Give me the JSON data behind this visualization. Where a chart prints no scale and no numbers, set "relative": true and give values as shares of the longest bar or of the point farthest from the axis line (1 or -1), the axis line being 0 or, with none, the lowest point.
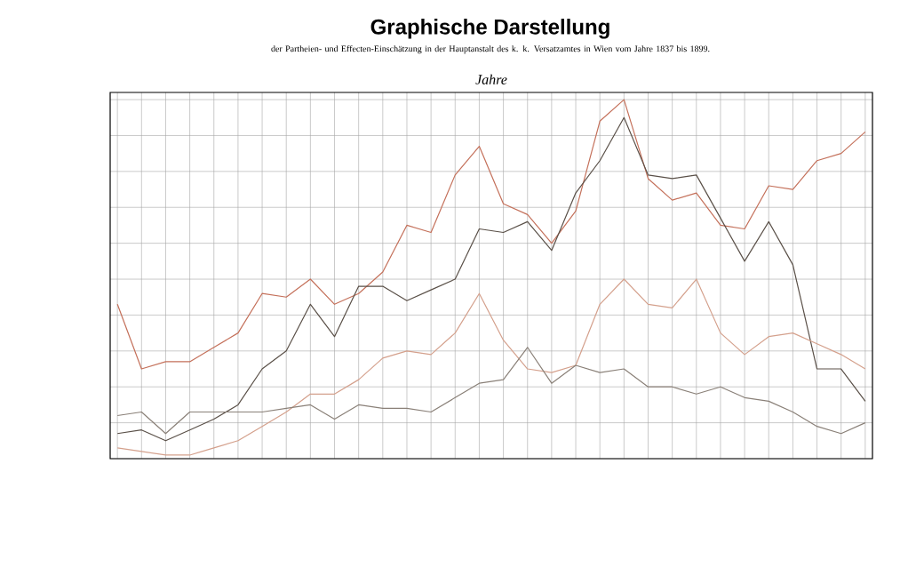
{
  "chart_data": {
    "type": "line",
    "title": "Graphische Darstellung",
    "subtitle": "der Partheien- und Effecten-Einschätzung in der Hauptanstalt des k. k. Versatzamtes in Wien vom Jahre 1837 bis 1899.",
    "xlabel": "Jahre",
    "relative": true,
    "grid": true,
    "marker": "none",
    "line_style": "solid",
    "categories": [
      null,
      null,
      null,
      null,
      null,
      null,
      null,
      null,
      null,
      null,
      null,
      null,
      null,
      null,
      null,
      null,
      null,
      null,
      null,
      null,
      null,
      null,
      null,
      null,
      null,
      null,
      null,
      null,
      null,
      null,
      null,
      null
    ],
    "series": [
      {
        "color": "#c4705a",
        "values": [
          0.43,
          0.25,
          0.27,
          0.27,
          0.31,
          0.35,
          0.46,
          0.45,
          0.5,
          0.43,
          0.46,
          0.52,
          0.65,
          0.63,
          0.79,
          0.87,
          0.71,
          0.68,
          0.6,
          0.69,
          0.94,
          1.0,
          0.78,
          0.72,
          0.74,
          0.65,
          0.64,
          0.76,
          0.75,
          0.83,
          0.85,
          0.91
        ]
      },
      {
        "color": "#5a5048",
        "values": [
          0.07,
          0.08,
          0.05,
          0.08,
          0.11,
          0.15,
          0.25,
          0.3,
          0.43,
          0.34,
          0.48,
          0.48,
          0.44,
          0.47,
          0.5,
          0.64,
          0.63,
          0.66,
          0.58,
          0.74,
          0.83,
          0.95,
          0.79,
          0.78,
          0.79,
          0.67,
          0.55,
          0.66,
          0.54,
          0.25,
          0.25,
          0.16
        ]
      },
      {
        "color": "#d4a08c",
        "values": [
          0.03,
          0.02,
          0.01,
          0.01,
          0.03,
          0.05,
          0.09,
          0.13,
          0.18,
          0.18,
          0.22,
          0.28,
          0.3,
          0.29,
          0.35,
          0.46,
          0.33,
          0.25,
          0.24,
          0.26,
          0.43,
          0.5,
          0.43,
          0.42,
          0.5,
          0.35,
          0.29,
          0.34,
          0.35,
          0.32,
          0.29,
          0.25
        ]
      },
      {
        "color": "#8a8078",
        "values": [
          0.12,
          0.13,
          0.07,
          0.13,
          0.13,
          0.13,
          0.13,
          0.14,
          0.15,
          0.11,
          0.15,
          0.14,
          0.14,
          0.13,
          0.17,
          0.21,
          0.22,
          0.31,
          0.21,
          0.26,
          0.24,
          0.25,
          0.2,
          0.2,
          0.18,
          0.2,
          0.17,
          0.16,
          0.13,
          0.09,
          0.07,
          0.1
        ]
      }
    ]
  }
}
